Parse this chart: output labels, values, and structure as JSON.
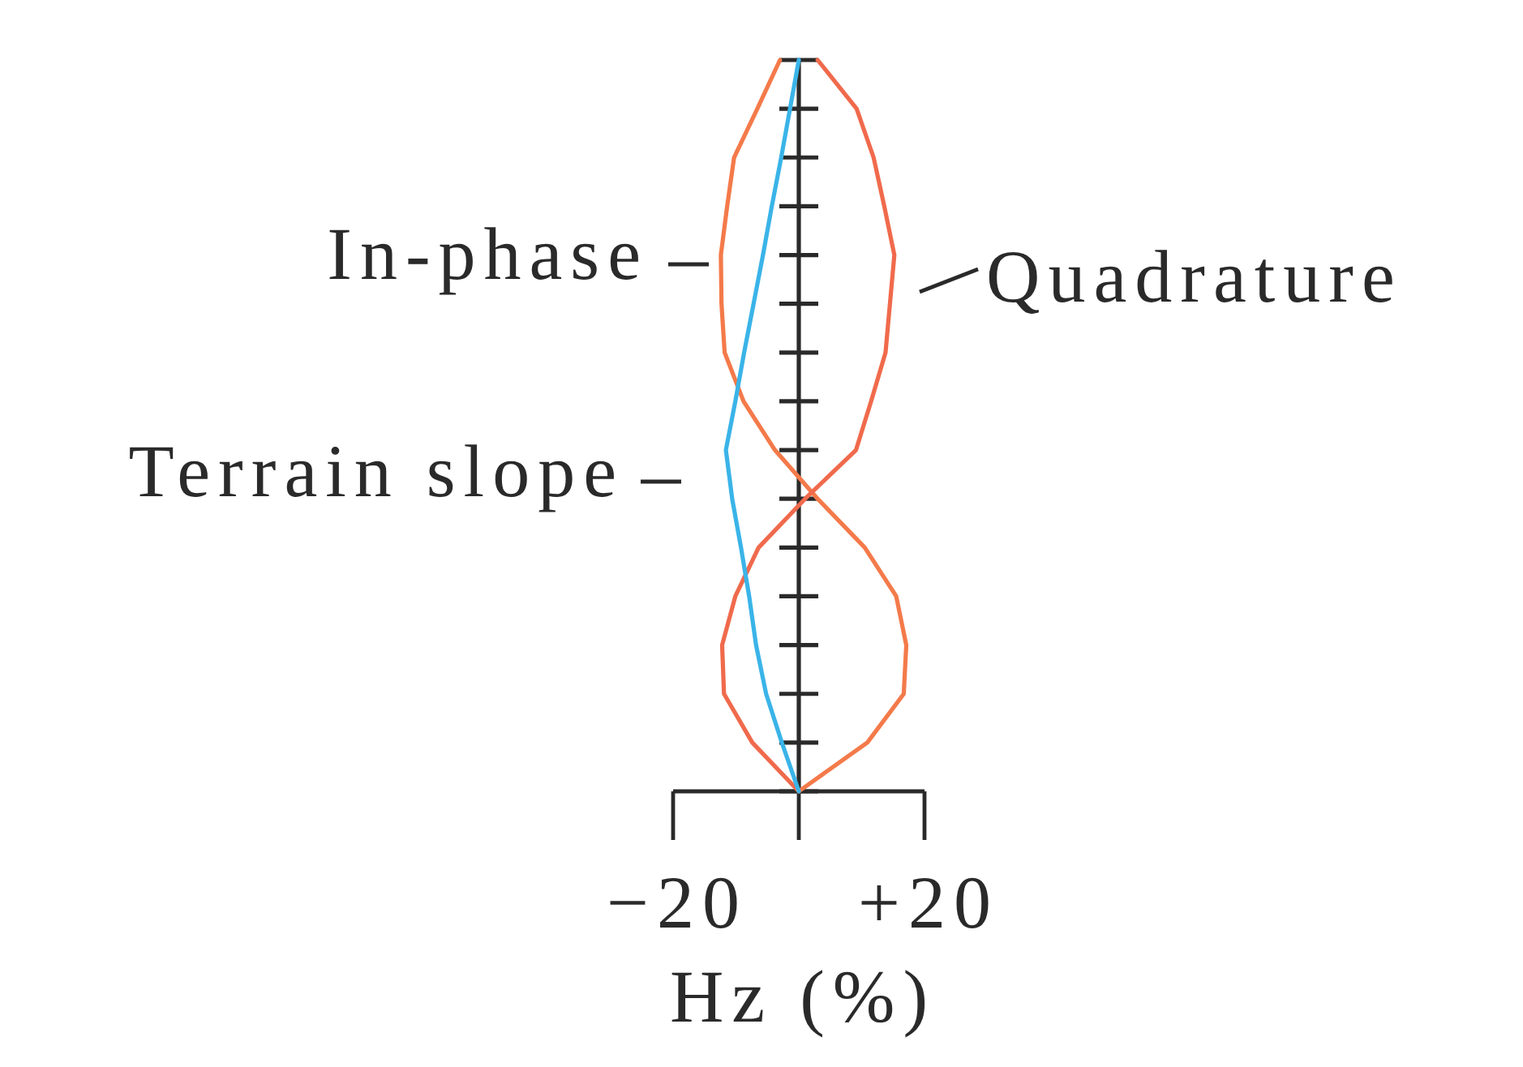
{
  "chart_data": {
    "type": "line",
    "orientation": "horizontal",
    "categories": [
      null,
      null,
      null,
      null,
      null,
      null,
      null,
      null,
      null,
      null,
      null,
      null,
      null,
      null,
      null,
      null
    ],
    "series": [
      {
        "name": "In-phase",
        "color": "#f47a4a",
        "values": [
          -3,
          -6.6,
          -10.3,
          -11.4,
          -12.4,
          -12.3,
          -11.8,
          -8.8,
          -3.8,
          3,
          10.5,
          15.5,
          17.1,
          16.7,
          10.9,
          0
        ]
      },
      {
        "name": "Quadrature",
        "color": "#f06a4c",
        "values": [
          3,
          9.2,
          11.9,
          13.6,
          15.2,
          14.5,
          13.8,
          11.5,
          9.1,
          1,
          -6.4,
          -10.1,
          -12.2,
          -11.9,
          -7.4,
          0
        ]
      },
      {
        "name": "Terrain slope",
        "color": "#3ab4e8",
        "values": [
          0,
          -1.4,
          -2.8,
          -4.3,
          -5.7,
          -7.2,
          -8.7,
          -10.1,
          -11.6,
          -10.6,
          -9.2,
          -7.9,
          -6.8,
          -5.2,
          -2.7,
          0
        ]
      }
    ],
    "xlabel": "Hz (%)",
    "xlim": [
      -20,
      20
    ],
    "xticks": [
      {
        "value": -20,
        "label": "−20"
      },
      {
        "value": 0,
        "label": null
      },
      {
        "value": 20,
        "label": "+20"
      }
    ],
    "tick_labels": "x"
  }
}
